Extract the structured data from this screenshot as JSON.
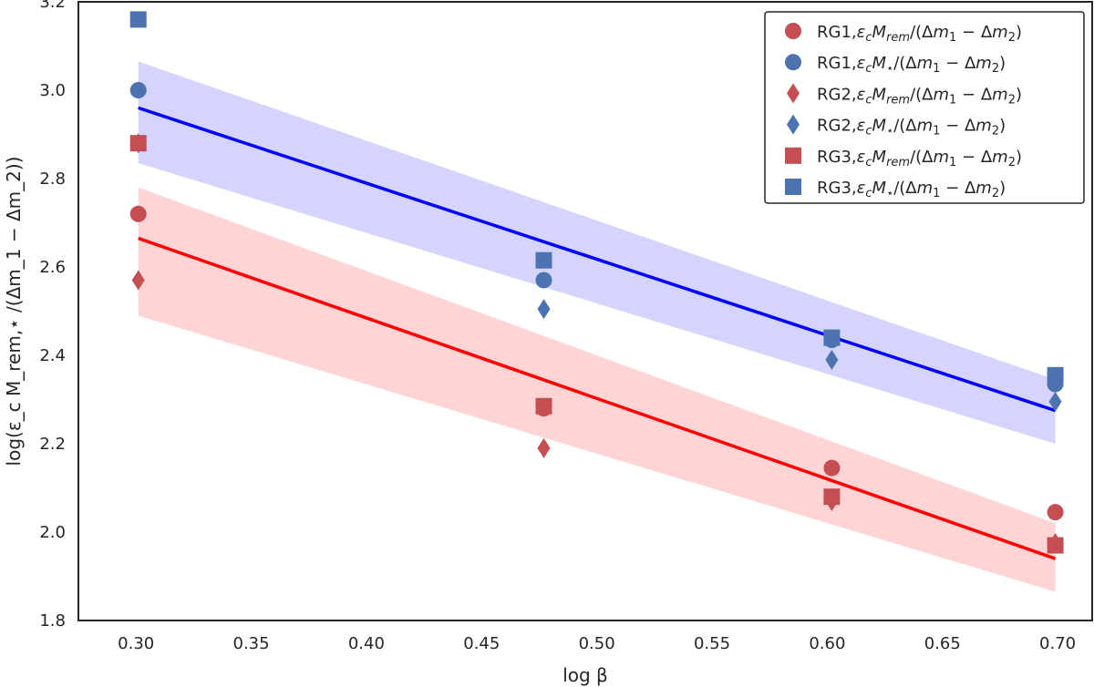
{
  "chart_data": {
    "type": "scatter",
    "title": "",
    "xlabel": "log β",
    "ylabel": "log(ε_c M_rem,⋆ /(Δm_1 − Δm_2))",
    "xlim": [
      0.275,
      0.715
    ],
    "ylim": [
      1.8,
      3.2
    ],
    "xticks": [
      "0.30",
      "0.35",
      "0.40",
      "0.45",
      "0.50",
      "0.55",
      "0.60",
      "0.65",
      "0.70"
    ],
    "yticks": [
      "1.8",
      "2.0",
      "2.2",
      "2.4",
      "2.6",
      "2.8",
      "3.0",
      "3.2"
    ],
    "grid": false,
    "legend_position": "top-right",
    "colors": {
      "red": "#c44e52",
      "blue": "#4c72b0",
      "red_line": "#ff0000",
      "blue_line": "#0000ff",
      "red_band": "#ffcccc",
      "blue_band": "#ccccff"
    },
    "series": [
      {
        "name": "RG1, ε_c M_rem / (Δm_1 − Δm_2)",
        "legend_prefix": "RG1,",
        "sym": "rem",
        "marker": "circle",
        "color": "#c44e52",
        "x": [
          0.301,
          0.477,
          0.602,
          0.699
        ],
        "y": [
          2.72,
          2.28,
          2.145,
          2.045
        ]
      },
      {
        "name": "RG1, ε_c M_⋆ / (Δm_1 − Δm_2)",
        "legend_prefix": "RG1,",
        "sym": "star",
        "marker": "circle",
        "color": "#4c72b0",
        "x": [
          0.301,
          0.477,
          0.602,
          0.699
        ],
        "y": [
          3.0,
          2.57,
          2.435,
          2.335
        ]
      },
      {
        "name": "RG2, ε_c M_rem / (Δm_1 − Δm_2)",
        "legend_prefix": "RG2,",
        "sym": "rem",
        "marker": "diamond",
        "color": "#c44e52",
        "x": [
          0.301,
          0.477,
          0.602,
          0.699
        ],
        "y": [
          2.57,
          2.19,
          2.07,
          1.975
        ]
      },
      {
        "name": "RG2, ε_c M_⋆ / (Δm_1 − Δm_2)",
        "legend_prefix": "RG2,",
        "sym": "star",
        "marker": "diamond",
        "color": "#4c72b0",
        "x": [
          0.301,
          0.477,
          0.602,
          0.699
        ],
        "y": [
          2.88,
          2.505,
          2.39,
          2.295
        ]
      },
      {
        "name": "RG3, ε_c M_rem / (Δm_1 − Δm_2)",
        "legend_prefix": "RG3,",
        "sym": "rem",
        "marker": "square",
        "color": "#c44e52",
        "x": [
          0.301,
          0.477,
          0.602,
          0.699
        ],
        "y": [
          2.88,
          2.285,
          2.08,
          1.97
        ]
      },
      {
        "name": "RG3, ε_c M_⋆ / (Δm_1 − Δm_2)",
        "legend_prefix": "RG3,",
        "sym": "star",
        "marker": "square",
        "color": "#4c72b0",
        "x": [
          0.301,
          0.477,
          0.602,
          0.699
        ],
        "y": [
          3.16,
          2.615,
          2.44,
          2.355
        ]
      }
    ],
    "fits": [
      {
        "name": "rem-fit",
        "color": "#ff0000",
        "band_color": "#ffcccc",
        "x": [
          0.301,
          0.699
        ],
        "y": [
          2.665,
          1.94
        ],
        "band_upper": [
          2.78,
          2.02
        ],
        "band_lower": [
          2.49,
          1.865
        ]
      },
      {
        "name": "star-fit",
        "color": "#0000ff",
        "band_color": "#ccccff",
        "x": [
          0.301,
          0.699
        ],
        "y": [
          2.96,
          2.275
        ],
        "band_upper": [
          3.065,
          2.345
        ],
        "band_lower": [
          2.835,
          2.2
        ]
      }
    ]
  }
}
